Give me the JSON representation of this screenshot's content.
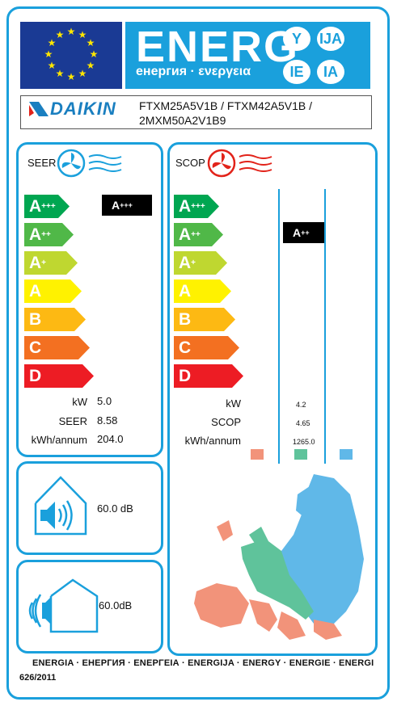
{
  "header": {
    "title": "ENERG",
    "subtitle": "енергия · ενεργεια",
    "languages": [
      "Y",
      "IJA",
      "IE",
      "IA"
    ]
  },
  "supplier": {
    "brand": "DAIKIN",
    "models_line1": "FTXM25A5V1B / FTXM42A5V1B /",
    "models_line2": "2MXM50A2V1B9"
  },
  "classes": [
    {
      "letter": "A",
      "sup": "+++",
      "color": "#00a651"
    },
    {
      "letter": "A",
      "sup": "++",
      "color": "#50b848"
    },
    {
      "letter": "A",
      "sup": "+",
      "color": "#bfd730"
    },
    {
      "letter": "A",
      "sup": "",
      "color": "#fff200"
    },
    {
      "letter": "B",
      "sup": "",
      "color": "#fdb913"
    },
    {
      "letter": "C",
      "sup": "",
      "color": "#f37021"
    },
    {
      "letter": "D",
      "sup": "",
      "color": "#ed1c24"
    }
  ],
  "seer": {
    "label": "SEER",
    "rating_letter": "A",
    "rating_sup": "+++",
    "kw_label": "kW",
    "kw_value": "5.0",
    "seer_label": "SEER",
    "seer_value": "8.58",
    "annum_label": "kWh/annum",
    "annum_value": "204.0"
  },
  "scop": {
    "label": "SCOP",
    "rating_letter": "A",
    "rating_sup": "++",
    "kw_label": "kW",
    "kw_value": "4.2",
    "scop_label": "SCOP",
    "scop_value": "4.65",
    "annum_label": "kWh/annum",
    "annum_value": "1265.0",
    "zone_colors": [
      "#f2937a",
      "#5fc39b",
      "#60b8e8"
    ]
  },
  "noise": {
    "indoor_value": "60.0 dB",
    "outdoor_value": "60.0",
    "outdoor_unit": "dB"
  },
  "footer": {
    "languages": "ENERGIA · ЕНЕРГИЯ · ΕΝΕΡΓΕΙΑ · ENERGIJA · ENERGY · ENERGIE · ENERGI",
    "regulation": "626/2011"
  },
  "colors": {
    "frame_blue": "#1aa0dc",
    "eu_blue": "#1a3a94",
    "eu_star": "#ffe600"
  }
}
